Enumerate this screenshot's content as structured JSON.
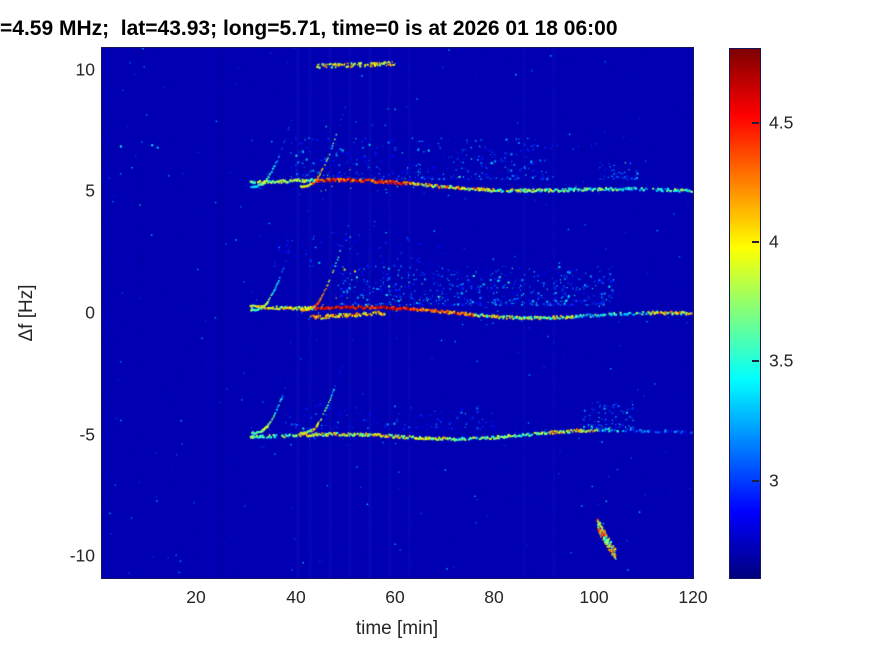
{
  "chart_data": {
    "type": "heatmap",
    "title": "=4.59 MHz;  lat=43.93; long=5.71, time=0 is at 2026 01 18 06:00",
    "xlabel": "time [min]",
    "ylabel": "Δf [Hz]",
    "xlim": [
      1.1,
      120
    ],
    "ylim": [
      -10.9,
      10.9
    ],
    "xtick_labels": [
      "20",
      "40",
      "60",
      "80",
      "100",
      "120"
    ],
    "xtick_values": [
      20,
      40,
      60,
      80,
      100,
      120
    ],
    "ytick_labels": [
      "10",
      "5",
      "0",
      "-5",
      "-10"
    ],
    "ytick_values": [
      10,
      5,
      0,
      -5,
      -10
    ],
    "grid": false,
    "colormap": "jet",
    "caxis": [
      2.59,
      4.81
    ],
    "background_value": 2.7,
    "colorbar": {
      "position": "right",
      "tick_labels": [
        "4.5",
        "4",
        "3.5",
        "3"
      ],
      "tick_values": [
        4.5,
        4,
        3.5,
        3
      ]
    },
    "noise": {
      "count": 7200,
      "vmin": 2.59,
      "vmax": 3.02,
      "bright_count": 240,
      "bright_vmin": 2.95,
      "bright_vmax": 3.5,
      "columns": [
        {
          "t": 8.5,
          "delta": -0.035
        },
        {
          "t": 25.0,
          "delta": -0.045
        },
        {
          "t": 40.5,
          "delta": 0.05
        },
        {
          "t": 43.0,
          "delta": 0.04
        },
        {
          "t": 47.0,
          "delta": 0.05
        },
        {
          "t": 51.0,
          "delta": 0.04
        },
        {
          "t": 55.0,
          "delta": 0.05
        },
        {
          "t": 59.0,
          "delta": 0.04
        },
        {
          "t": 63.0,
          "delta": 0.03
        },
        {
          "t": 86.0,
          "delta": 0.03
        },
        {
          "t": 92.0,
          "delta": 0.03
        }
      ]
    },
    "extra_points": [
      {
        "t": 4.9,
        "df": 6.85,
        "v": 3.45
      },
      {
        "t": 11.2,
        "df": 6.9,
        "v": 3.4
      },
      {
        "t": 12.3,
        "df": 6.8,
        "v": 3.3
      }
    ],
    "traces": [
      {
        "name": "upper-echo-trace",
        "baseline": 5.2,
        "t_start": 31,
        "t_end": 120,
        "wobble": {
          "a1": 0.22,
          "p1": 28,
          "ph1": 0.5,
          "a2": 0.1,
          "p2": 9,
          "ph2": 2.1
        },
        "hooks": [
          {
            "t": 33.2,
            "dt": 4.2,
            "rise": 1.5,
            "vmin": 3.0,
            "vmax": 3.9,
            "fade": 1.2
          },
          {
            "t": 43.2,
            "dt": 5.2,
            "rise": 2.1,
            "vmin": 3.4,
            "vmax": 4.5,
            "fade": 1.5
          }
        ],
        "segments": [
          {
            "t0": 31,
            "t1": 44,
            "vmin": 3.4,
            "vmax": 4.1,
            "density": 0.92
          },
          {
            "t0": 44,
            "t1": 63,
            "vmin": 4.1,
            "vmax": 4.7,
            "density": 0.95
          },
          {
            "t0": 63,
            "t1": 80,
            "vmin": 3.5,
            "vmax": 4.4,
            "density": 0.88
          },
          {
            "t0": 80,
            "t1": 95,
            "vmin": 3.3,
            "vmax": 4.1,
            "density": 0.8
          },
          {
            "t0": 95,
            "t1": 120,
            "vmin": 3.1,
            "vmax": 3.9,
            "density": 0.72
          }
        ],
        "features": [
          {
            "t0": 44,
            "t1": 60,
            "df0": 4.95,
            "df1": 5.05,
            "count": 110,
            "vmin": 3.6,
            "vmax": 4.3,
            "spread": 0.08
          }
        ],
        "clouds": [
          {
            "t0": 39,
            "t1": 92,
            "df0": 0.3,
            "df1": 2.0,
            "count": 430,
            "vmin": 2.85,
            "vmax": 3.5
          },
          {
            "t0": 101,
            "t1": 109,
            "df0": 0.3,
            "df1": 1.0,
            "count": 60,
            "vmin": 2.9,
            "vmax": 3.4
          }
        ]
      },
      {
        "name": "center-trace",
        "baseline": 0.12,
        "t_start": 31,
        "t_end": 120,
        "wobble": {
          "a1": 0.25,
          "p1": 26,
          "ph1": 0.9,
          "a2": 0.1,
          "p2": 8,
          "ph2": 0.3
        },
        "hooks": [
          {
            "t": 33.2,
            "dt": 4.4,
            "rise": 1.6,
            "vmin": 3.1,
            "vmax": 4.0,
            "fade": 1.3
          },
          {
            "t": 43.4,
            "dt": 5.6,
            "rise": 2.3,
            "vmin": 3.6,
            "vmax": 4.6,
            "fade": 1.6
          }
        ],
        "segments": [
          {
            "t0": 31,
            "t1": 44,
            "vmin": 3.6,
            "vmax": 4.2,
            "density": 0.95
          },
          {
            "t0": 44,
            "t1": 63,
            "vmin": 4.3,
            "vmax": 4.8,
            "density": 0.97
          },
          {
            "t0": 63,
            "t1": 76,
            "vmin": 4.0,
            "vmax": 4.6,
            "density": 0.92
          },
          {
            "t0": 76,
            "t1": 96,
            "vmin": 3.4,
            "vmax": 4.2,
            "density": 0.85
          },
          {
            "t0": 96,
            "t1": 111,
            "vmin": 3.1,
            "vmax": 3.8,
            "density": 0.65
          },
          {
            "t0": 111,
            "t1": 120,
            "vmin": 3.5,
            "vmax": 4.6,
            "density": 0.9
          }
        ],
        "features": [
          {
            "t0": 43,
            "t1": 58,
            "df0": -0.3,
            "df1": -0.12,
            "count": 120,
            "vmin": 3.7,
            "vmax": 4.4,
            "spread": 0.08
          }
        ],
        "clouds": [
          {
            "t0": 48,
            "t1": 104,
            "df0": 0.2,
            "df1": 1.8,
            "count": 680,
            "vmin": 2.85,
            "vmax": 3.7
          },
          {
            "t0": 35,
            "t1": 70,
            "df0": 1.8,
            "df1": 3.2,
            "count": 130,
            "vmin": 2.75,
            "vmax": 3.15
          }
        ]
      },
      {
        "name": "lower-echo-trace",
        "baseline": -4.93,
        "t_start": 31,
        "t_end": 120,
        "wobble": {
          "a1": 0.18,
          "p1": 24,
          "ph1": 2.2,
          "a2": 0.1,
          "p2": 7.5,
          "ph2": 1.1
        },
        "hooks": [
          {
            "t": 33.4,
            "dt": 4.0,
            "rise": 1.4,
            "vmin": 3.2,
            "vmax": 4.0,
            "fade": 1.1
          },
          {
            "t": 43.2,
            "dt": 4.6,
            "rise": 1.7,
            "vmin": 3.4,
            "vmax": 4.2,
            "fade": 1.2
          }
        ],
        "segments": [
          {
            "t0": 31,
            "t1": 40,
            "vmin": 3.3,
            "vmax": 3.9,
            "density": 0.85
          },
          {
            "t0": 40,
            "t1": 70,
            "vmin": 3.5,
            "vmax": 4.25,
            "density": 0.9
          },
          {
            "t0": 70,
            "t1": 88,
            "vmin": 3.3,
            "vmax": 4.0,
            "density": 0.8
          },
          {
            "t0": 88,
            "t1": 101,
            "vmin": 3.5,
            "vmax": 4.3,
            "density": 0.85
          },
          {
            "t0": 101,
            "t1": 106,
            "vmin": 3.0,
            "vmax": 3.6,
            "density": 0.5
          },
          {
            "t0": 106,
            "t1": 120,
            "vmin": 2.85,
            "vmax": 3.3,
            "density": 0.5
          }
        ],
        "features": [
          {
            "t0": 100.8,
            "t1": 104.6,
            "df0": -3.75,
            "df1": -5.1,
            "count": 140,
            "vmin": 3.4,
            "vmax": 4.6,
            "spread": 0.25
          }
        ],
        "clouds": [
          {
            "t0": 38,
            "t1": 80,
            "df0": 0.15,
            "df1": 1.2,
            "count": 175,
            "vmin": 2.8,
            "vmax": 3.3
          },
          {
            "t0": 98,
            "t1": 108,
            "df0": 0.2,
            "df1": 1.3,
            "count": 90,
            "vmin": 2.9,
            "vmax": 3.6
          }
        ]
      }
    ]
  }
}
